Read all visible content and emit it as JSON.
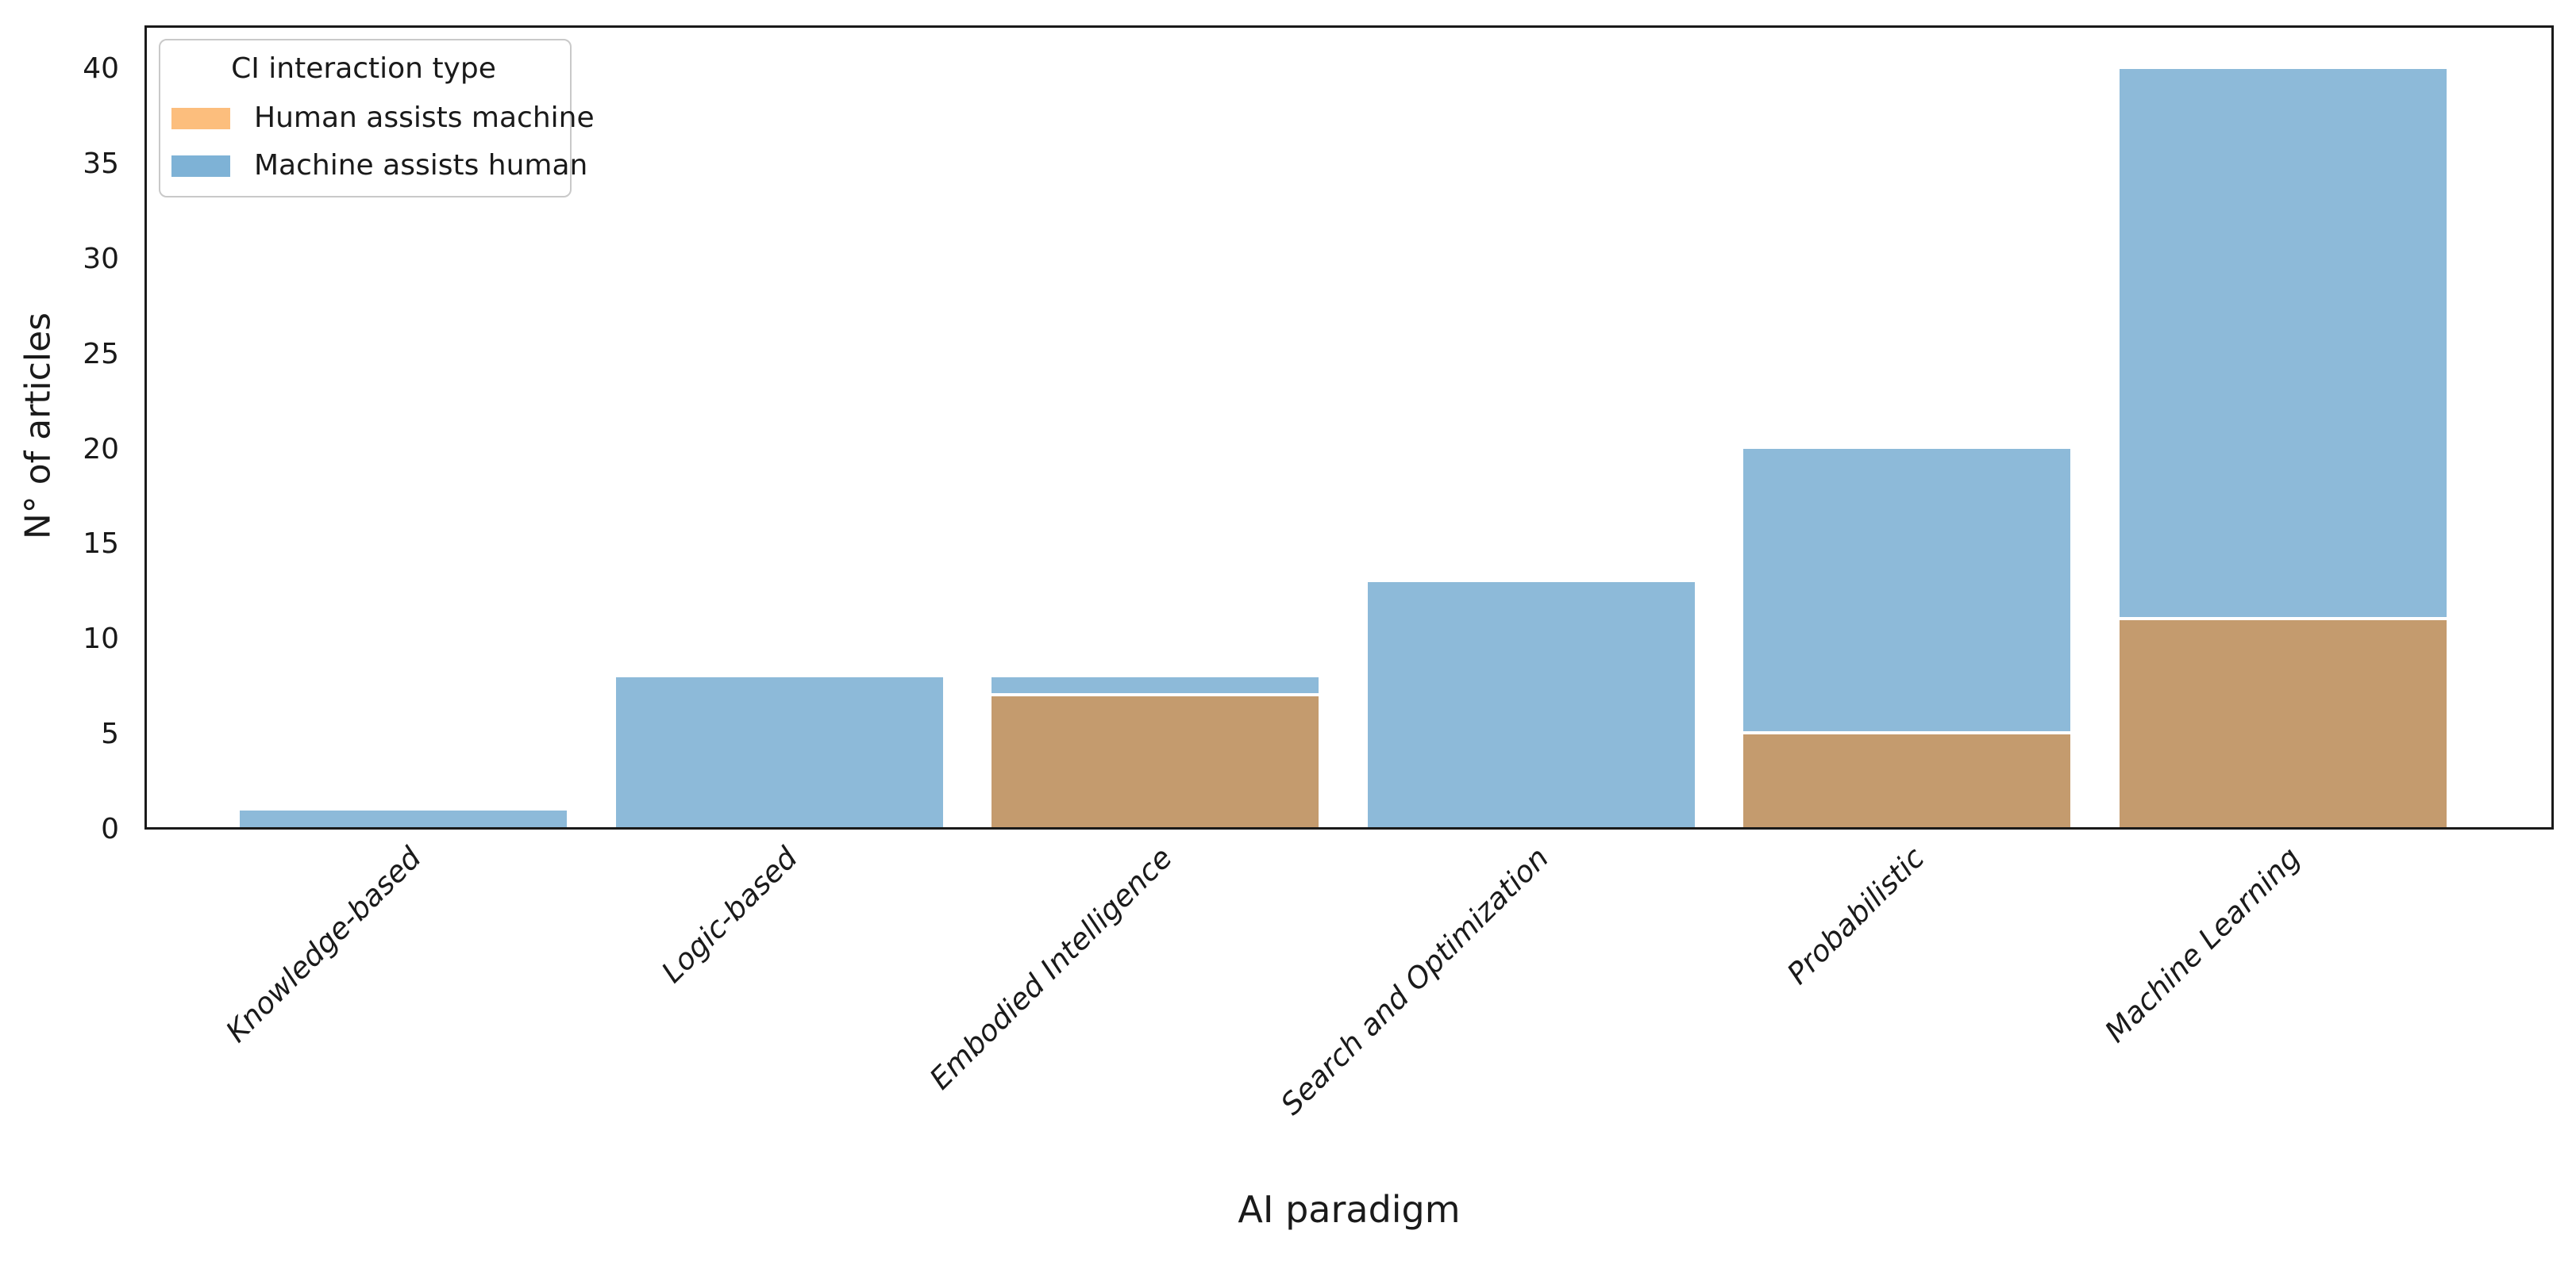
{
  "chart_data": {
    "type": "bar",
    "stacked": true,
    "title": "",
    "xlabel": "AI paradigm",
    "ylabel": "N° of articles",
    "categories": [
      "Knowledge-based",
      "Logic-based",
      "Embodied Intelligence",
      "Search and Optimization",
      "Probabilistic",
      "Machine Learning"
    ],
    "series": [
      {
        "name": "Human assists machine",
        "values": [
          0,
          0,
          7,
          0,
          5,
          11
        ],
        "legend_color": "#fcbe7d",
        "bar_color": "#c49b6e"
      },
      {
        "name": "Machine assists human",
        "values": [
          1,
          8,
          1,
          13,
          15,
          29
        ],
        "legend_color": "#7eb2d6",
        "bar_color": "#8dbad9"
      }
    ],
    "totals": [
      1,
      8,
      8,
      13,
      20,
      40
    ],
    "legend": {
      "title": "CI interaction type",
      "position": "upper left"
    },
    "ylim": [
      0,
      40
    ],
    "yticks": [
      0,
      5,
      10,
      15,
      20,
      25,
      30,
      35,
      40
    ],
    "grid": false,
    "xtick_style": "italic rotated 45deg",
    "colors": {
      "axis": "#1a1a1a",
      "text": "#1a1a1a",
      "background": "#ffffff",
      "segment_divider": "#ffffff"
    }
  }
}
